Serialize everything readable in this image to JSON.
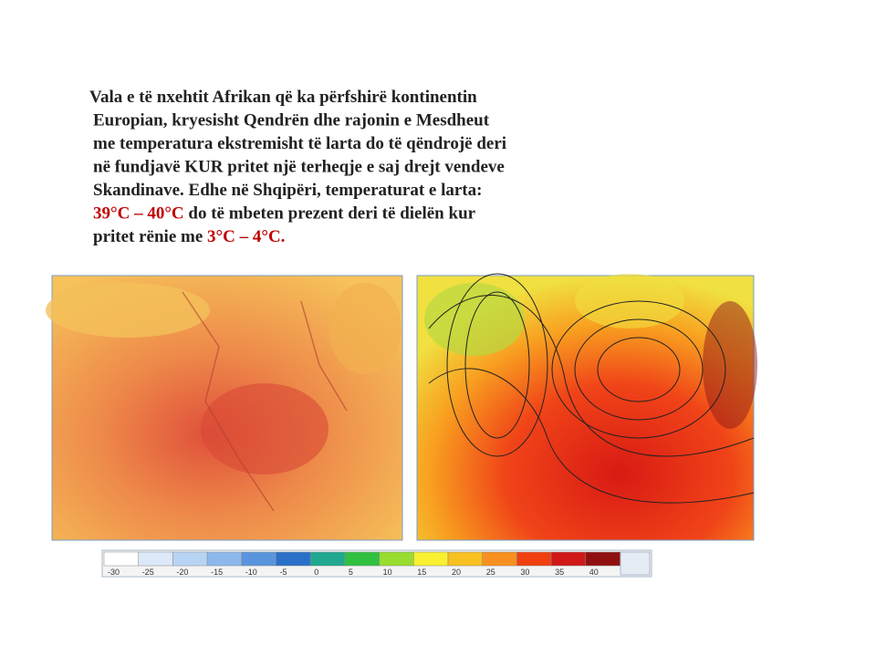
{
  "text": {
    "lines": [
      [
        {
          "text": "Vala e të nxehtit Afrikan që ka përfshirë kontinentin"
        }
      ],
      [
        {
          "text": "Europian, kryesisht Qendrën dhe rajonin e Mesdheut"
        }
      ],
      [
        {
          "text": "me temperatura ekstremisht të larta do të qëndrojë deri"
        }
      ],
      [
        {
          "text": "në fundjavë KUR pritet një terheqje e saj drejt vendeve"
        }
      ],
      [
        {
          "text": "Skandinave. Edhe në Shqipëri, temperaturat e larta:"
        }
      ],
      [
        {
          "text": "39°C – 40°C",
          "color": "#c00000"
        },
        {
          "text": " do të mbeten prezent deri të dielën kur"
        }
      ],
      [
        {
          "text": "pritet rënie me "
        },
        {
          "text": "3°C – 4°C.",
          "color": "#c00000"
        }
      ]
    ]
  },
  "legend": {
    "items": [
      {
        "label": -30,
        "color": "#ffffff"
      },
      {
        "label": -25,
        "color": "#dde8f8"
      },
      {
        "label": -20,
        "color": "#b8d4f4"
      },
      {
        "label": -15,
        "color": "#8cb8ec"
      },
      {
        "label": -10,
        "color": "#5a94dc"
      },
      {
        "label": -5,
        "color": "#2a70c8"
      },
      {
        "label": 0,
        "color": "#20a890"
      },
      {
        "label": 5,
        "color": "#30c040"
      },
      {
        "label": 10,
        "color": "#98dc30"
      },
      {
        "label": 15,
        "color": "#f8f030"
      },
      {
        "label": 20,
        "color": "#f8c020"
      },
      {
        "label": 25,
        "color": "#f89020"
      },
      {
        "label": 30,
        "color": "#f04010"
      },
      {
        "label": 35,
        "color": "#d01818"
      },
      {
        "label": 40,
        "color": "#901010"
      }
    ]
  }
}
